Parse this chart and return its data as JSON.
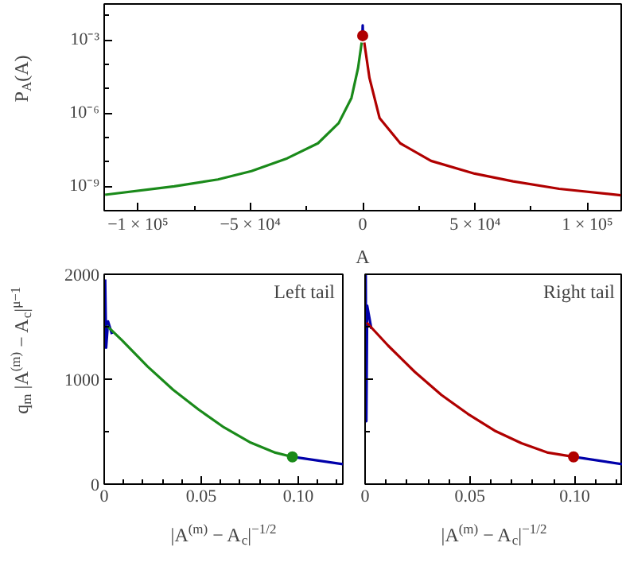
{
  "chart_data": [
    {
      "type": "line",
      "xlabel": "A",
      "ylabel": "P$_{A}$(A)",
      "log": "y",
      "xlim": [
        -115000,
        115000
      ],
      "ylim": [
        1e-10,
        0.03
      ],
      "xticks": [
        {
          "value": -100000,
          "label": "−1 × 10⁵"
        },
        {
          "value": -75000,
          "label": null
        },
        {
          "value": -50000,
          "label": "−5 × 10⁴"
        },
        {
          "value": -25000,
          "label": null
        },
        0,
        {
          "value": 25000,
          "label": null
        },
        {
          "value": 50000,
          "label": "5 × 10⁴"
        },
        {
          "value": 75000,
          "label": null
        },
        {
          "value": 100000,
          "label": "1 × 10⁵"
        }
      ],
      "yticks": [
        {
          "value": 0.01,
          "label": null
        },
        {
          "value": 0.001,
          "label": "10⁻³"
        },
        {
          "value": 0.0001,
          "label": null
        },
        {
          "value": 1e-05,
          "label": null
        },
        {
          "value": 1e-06,
          "label": "10⁻⁶"
        },
        {
          "value": 1e-07,
          "label": null
        },
        {
          "value": 1e-08,
          "label": null
        },
        {
          "value": 1e-09,
          "label": "10⁻⁹"
        }
      ],
      "grid": false,
      "series": [
        {
          "color": "#0000aa",
          "x": [
            -200,
            0,
            200
          ],
          "values": [
            0.001,
            0.004,
            0.001
          ]
        },
        {
          "color": "#1a8a1a",
          "x": [
            -114600,
            -83800,
            -64400,
            -49500,
            -33600,
            -19900,
            -10700,
            -5000,
            -2050,
            -450
          ],
          "values": [
            4.5e-10,
            1e-09,
            1.9e-09,
            4.2e-09,
            1.4e-08,
            5.8e-08,
            3.9e-07,
            4.2e-06,
            7.2e-05,
            0.00079
          ]
        },
        {
          "color": "#b00000",
          "x": [
            700,
            3000,
            7500,
            16700,
            30400,
            49800,
            66900,
            87400,
            114800
          ],
          "values": [
            0.00079,
            2.8e-05,
            6.3e-07,
            5.8e-08,
            1.1e-08,
            3.3e-09,
            1.6e-09,
            7.9e-10,
            4.3e-10
          ]
        },
        {
          "type": "scatter",
          "marker": "circle",
          "color": "#b00000",
          "x": [
            0
          ],
          "values": [
            0.0015
          ]
        }
      ]
    },
    {
      "type": "line",
      "xlabel": "|A$^{(m)}$ − A$_{c}$|$^{−1/2}$",
      "ylabel": "q$_{m}$ |A$^{(m)}$ − A$_{c}$|$^{μ−1}$",
      "annotations": [
        "Left tail"
      ],
      "xlim": [
        0,
        0.123
      ],
      "ylim": [
        0,
        2000
      ],
      "xticks": [
        0,
        {
          "value": 0.01,
          "label": null
        },
        {
          "value": 0.02,
          "label": null
        },
        {
          "value": 0.03,
          "label": null
        },
        {
          "value": 0.04,
          "label": null
        },
        {
          "value": 0.05,
          "label": "0.05"
        },
        {
          "value": 0.06,
          "label": null
        },
        {
          "value": 0.07,
          "label": null
        },
        {
          "value": 0.08,
          "label": null
        },
        {
          "value": 0.09,
          "label": null
        },
        {
          "value": 0.1,
          "label": "0.10"
        },
        {
          "value": 0.11,
          "label": null
        },
        {
          "value": 0.12,
          "label": null
        }
      ],
      "yticks": [
        0,
        {
          "value": 500,
          "label": null
        },
        1000,
        {
          "value": 1500,
          "label": null
        },
        2000
      ],
      "grid": false,
      "series": [
        {
          "color": "#0000aa",
          "x": [
            0.0005,
            0.001,
            0.002,
            0.004,
            0.05,
            0.097,
            0.123
          ],
          "values": [
            1950,
            1300,
            1550,
            1430,
            null,
            260,
            190
          ]
        },
        {
          "color": "#1a8a1a",
          "x": [
            0.0013,
            0.0092,
            0.0224,
            0.0355,
            0.0487,
            0.0618,
            0.075,
            0.0882,
            0.097
          ],
          "values": [
            1510,
            1370,
            1120,
            900,
            710,
            540,
            400,
            300,
            260
          ]
        },
        {
          "type": "scatter",
          "marker": "circle",
          "color": "#1a8a1a",
          "x": [
            0.097
          ],
          "values": [
            260
          ]
        }
      ]
    },
    {
      "type": "line",
      "xlabel": "|A$^{(m)}$ − A$_{c}$|$^{−1/2}$",
      "annotations": [
        "Right tail"
      ],
      "tick_labels": "x",
      "xlim": [
        0,
        0.123
      ],
      "ylim": [
        0,
        2000
      ],
      "xticks": [
        0,
        {
          "value": 0.01,
          "label": null
        },
        {
          "value": 0.02,
          "label": null
        },
        {
          "value": 0.03,
          "label": null
        },
        {
          "value": 0.04,
          "label": null
        },
        {
          "value": 0.05,
          "label": "0.05"
        },
        {
          "value": 0.06,
          "label": null
        },
        {
          "value": 0.07,
          "label": null
        },
        {
          "value": 0.08,
          "label": null
        },
        {
          "value": 0.09,
          "label": null
        },
        {
          "value": 0.1,
          "label": "0.10"
        },
        {
          "value": 0.11,
          "label": null
        },
        {
          "value": 0.12,
          "label": null
        }
      ],
      "yticks": [
        0,
        {
          "value": 500,
          "label": null
        },
        1000,
        {
          "value": 1500,
          "label": null
        },
        2000
      ],
      "grid": false,
      "series": [
        {
          "color": "#0000aa",
          "x": [
            0.0003,
            0.0006,
            0.001,
            0.003,
            0.05,
            0.0995,
            0.123
          ],
          "values": [
            2000,
            600,
            1700,
            1480,
            null,
            260,
            190
          ]
        },
        {
          "color": "#b00000",
          "x": [
            0.0008,
            0.011,
            0.0237,
            0.0364,
            0.049,
            0.0618,
            0.0746,
            0.0873,
            0.0995
          ],
          "values": [
            1540,
            1320,
            1070,
            850,
            670,
            510,
            390,
            300,
            260
          ]
        },
        {
          "type": "scatter",
          "marker": "circle",
          "color": "#b00000",
          "x": [
            0.0995
          ],
          "values": [
            260
          ]
        }
      ]
    }
  ]
}
